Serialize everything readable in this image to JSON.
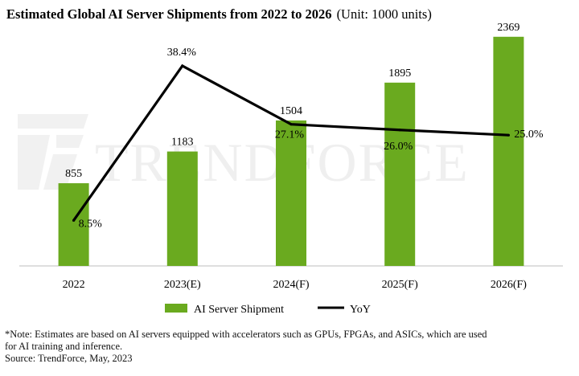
{
  "chart_data": {
    "type": "bar",
    "title_bold": "Estimated Global AI Server Shipments from 2022 to 2026",
    "title_unit": "(Unit: 1000 units)",
    "categories": [
      "2022",
      "2023(E)",
      "2024(F)",
      "2025(F)",
      "2026(F)"
    ],
    "series": [
      {
        "name": "AI Server Shipment",
        "kind": "bar",
        "values": [
          855,
          1183,
          1504,
          1895,
          2369
        ],
        "labels": [
          "855",
          "1183",
          "1504",
          "1895",
          "2369"
        ],
        "color": "#6aaa1f"
      },
      {
        "name": "YoY",
        "kind": "line",
        "unit": "%",
        "values": [
          8.5,
          38.4,
          27.1,
          26.0,
          25.0
        ],
        "labels": [
          "8.5%",
          "38.4%",
          "27.1%",
          "26.0%",
          "25.0%"
        ],
        "color": "#000000"
      }
    ],
    "ylim_bars": [
      0,
      2500
    ],
    "ylim_yoy": [
      0,
      45
    ],
    "grid": false,
    "legend": "bottom-center"
  },
  "watermark": "TRENDFORCE",
  "notes": {
    "line1": "*Note: Estimates are based on AI servers equipped with accelerators such as GPUs, FPGAs, and ASICs, which are used",
    "line2": "for AI training and inference.",
    "line3": "Source: TrendForce, May, 2023"
  }
}
